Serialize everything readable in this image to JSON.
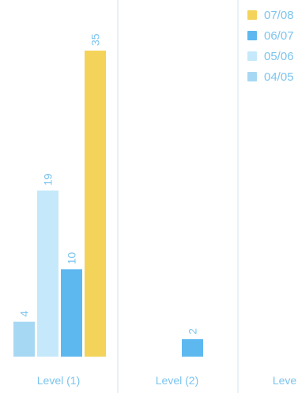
{
  "chart_data": {
    "type": "bar",
    "categories": [
      "Level (1)",
      "Level (2)",
      "Leve"
    ],
    "series": [
      {
        "name": "04/05",
        "color": "#a7d8f3",
        "values": [
          4,
          null,
          null
        ]
      },
      {
        "name": "05/06",
        "color": "#c5e9fa",
        "values": [
          19,
          null,
          null
        ]
      },
      {
        "name": "06/07",
        "color": "#5db8f0",
        "values": [
          10,
          2,
          null
        ]
      },
      {
        "name": "07/08",
        "color": "#f4d35a",
        "values": [
          35,
          null,
          null
        ]
      }
    ],
    "legend_order": [
      "07/08",
      "06/07",
      "05/06",
      "04/05"
    ],
    "ylim": [
      0,
      35
    ],
    "grid": false,
    "legend_position": "top-right",
    "label_color": "#7cc4ee"
  }
}
